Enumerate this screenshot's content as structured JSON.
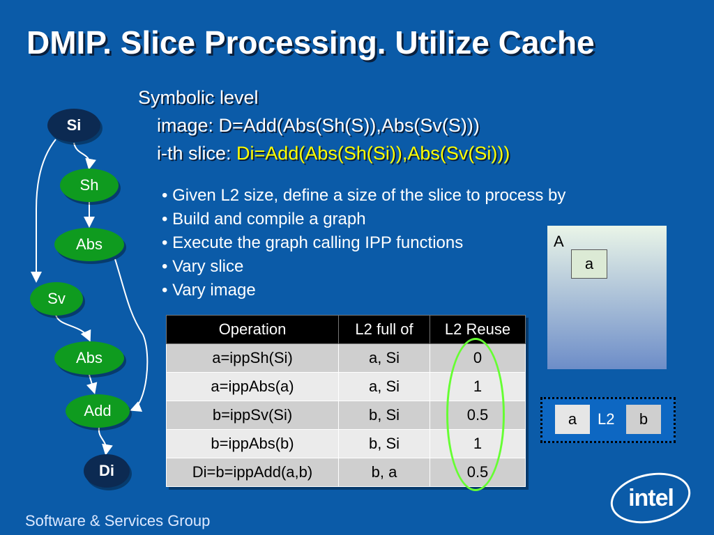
{
  "title": "DMIP. Slice Processing. Utilize Cache",
  "symbolic": {
    "line1": "Symbolic level",
    "line2": "image: D=Add(Abs(Sh(S)),Abs(Sv(S)))",
    "line3_prefix": "i-th slice: ",
    "line3_highlight": "Di=Add(Abs(Sh(Si)),Abs(Sv(Si)))"
  },
  "bullets": [
    "Given L2 size, define a size of the slice to process by",
    "Build and compile a graph",
    "Execute the graph calling IPP functions",
    "Vary slice",
    "Vary image"
  ],
  "graph": {
    "nodes": [
      "Si",
      "Sh",
      "Abs",
      "Sv",
      "Abs",
      "Add",
      "Di"
    ]
  },
  "table": {
    "headers": [
      "Operation",
      "L2 full of",
      "L2 Reuse"
    ],
    "rows": [
      [
        "a=ippSh(Si)",
        "a, Si",
        "0"
      ],
      [
        "a=ippAbs(a)",
        "a, Si",
        "1"
      ],
      [
        "b=ippSv(Si)",
        "b, Si",
        "0.5"
      ],
      [
        "b=ippAbs(b)",
        "b, Si",
        "1"
      ],
      [
        "Di=b=ippAdd(a,b)",
        "b, a",
        "0.5"
      ]
    ]
  },
  "imageBox": {
    "outer_label": "A",
    "inner_label": "a"
  },
  "l2box": {
    "left": "a",
    "middle": "L2",
    "right": "b"
  },
  "footer": "Software & Services Group",
  "logo_text": "intel",
  "colors": {
    "background": "#0b5ba8",
    "node_green": "#0f9b1f",
    "node_dark": "#0c2a52",
    "highlight": "#ffff00",
    "ellipse": "#66ff33"
  }
}
